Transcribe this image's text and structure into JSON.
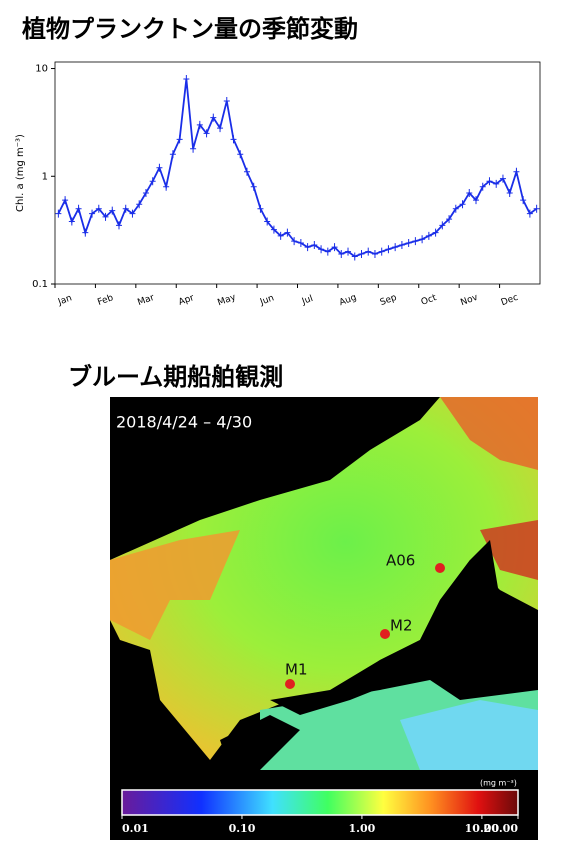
{
  "chart_data": {
    "type": "line",
    "title": "植物プランクトン量の季節変動",
    "y_label": "Chl. a (mg m⁻³)",
    "color": "#1a2ee8",
    "log_y": true,
    "categories": [
      "Jan",
      null,
      null,
      null,
      null,
      null,
      "Feb",
      null,
      null,
      null,
      null,
      null,
      "Mar",
      null,
      null,
      null,
      null,
      null,
      "Apr",
      null,
      null,
      null,
      null,
      null,
      "May",
      null,
      null,
      null,
      null,
      null,
      "Jun",
      null,
      null,
      null,
      null,
      null,
      "Jul",
      null,
      null,
      null,
      null,
      null,
      "Aug",
      null,
      null,
      null,
      null,
      null,
      "Sep",
      null,
      null,
      null,
      null,
      null,
      "Oct",
      null,
      null,
      null,
      null,
      null,
      "Nov",
      null,
      null,
      null,
      null,
      null,
      "Dec",
      null,
      null,
      null,
      null,
      null
    ],
    "values": [
      0.45,
      0.6,
      0.38,
      0.5,
      0.3,
      0.45,
      0.5,
      0.42,
      0.48,
      0.35,
      0.5,
      0.45,
      0.55,
      0.7,
      0.9,
      1.2,
      0.8,
      1.6,
      2.2,
      8,
      1.8,
      3,
      2.5,
      3.5,
      2.8,
      5,
      2.2,
      1.6,
      1.1,
      0.8,
      0.5,
      0.38,
      0.32,
      0.28,
      0.3,
      0.25,
      0.24,
      0.22,
      0.23,
      0.21,
      0.2,
      0.22,
      0.19,
      0.2,
      0.18,
      0.19,
      0.2,
      0.19,
      0.2,
      0.21,
      0.22,
      0.23,
      0.24,
      0.25,
      0.26,
      0.28,
      0.3,
      0.35,
      0.4,
      0.5,
      0.55,
      0.7,
      0.6,
      0.8,
      0.9,
      0.85,
      0.95,
      0.7,
      1.1,
      0.6,
      0.45,
      0.5
    ],
    "ylim": [
      0.1,
      11.5
    ],
    "yticks": [
      0.1,
      1,
      10
    ]
  },
  "map": {
    "title": "ブルーム期船舶観測",
    "period": "2018/4/24 – 4/30",
    "stations": [
      "A06",
      "M2",
      "M1"
    ],
    "colorbar": {
      "unit": "(mg m⁻³)",
      "range": [
        0.01,
        20
      ],
      "ticks": [
        0.01,
        {
          "value": 0.1,
          "label": "0.10"
        },
        {
          "value": 1,
          "label": "1.00"
        },
        {
          "value": 10,
          "label": "10.00"
        },
        {
          "value": 20,
          "label": "20.00"
        }
      ]
    }
  }
}
